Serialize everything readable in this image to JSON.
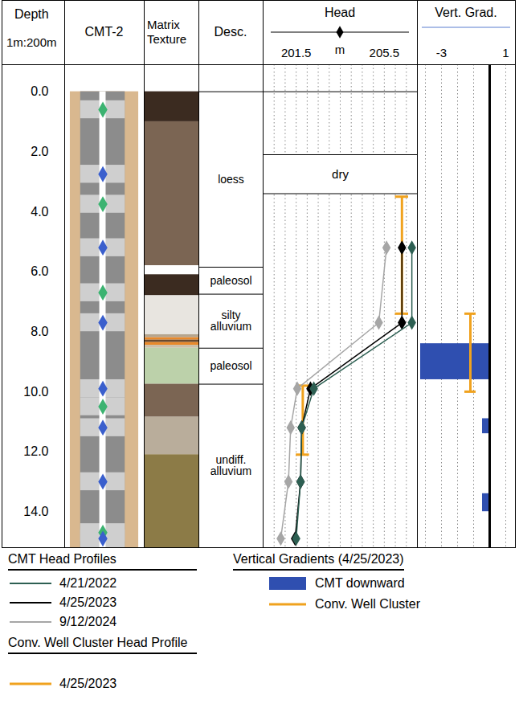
{
  "chart_data": {
    "type": "borehole_log",
    "ylabel": "Depth",
    "scale_label": "1m:200m",
    "legend": "bottom",
    "ylim": [
      -0.9,
      15.2
    ],
    "yticks": [
      {
        "value": 0,
        "label": "0.0"
      },
      {
        "value": 2,
        "label": "2.0"
      },
      {
        "value": 4,
        "label": "4.0"
      },
      {
        "value": 6,
        "label": "6.0"
      },
      {
        "value": 8,
        "label": "8.0"
      },
      {
        "value": 10,
        "label": "10.0"
      },
      {
        "value": 12,
        "label": "12.0"
      },
      {
        "value": 14,
        "label": "14.0"
      }
    ],
    "well": {
      "title": "CMT-2",
      "top": 0,
      "bottom": 15.2,
      "ports": [
        {
          "depth": 0.6,
          "color": "#3cb371"
        },
        {
          "depth": 2.75,
          "color": "#3a5fcd"
        },
        {
          "depth": 3.75,
          "color": "#3cb371"
        },
        {
          "depth": 5.2,
          "color": "#3a5fcd"
        },
        {
          "depth": 6.7,
          "color": "#3cb371"
        },
        {
          "depth": 7.7,
          "color": "#3a5fcd"
        },
        {
          "depth": 9.9,
          "color": "#3a5fcd"
        },
        {
          "depth": 10.5,
          "color": "#3cb371"
        },
        {
          "depth": 11.2,
          "color": "#3a5fcd"
        },
        {
          "depth": 13.0,
          "color": "#3a5fcd"
        },
        {
          "depth": 14.7,
          "color": "#3cb371"
        },
        {
          "depth": 14.9,
          "color": "#3a5fcd"
        }
      ]
    },
    "texture": {
      "title": "Matrix Texture",
      "layers": [
        {
          "top": 0,
          "bottom": 1.0,
          "color": "#3b2b20"
        },
        {
          "top": 1.0,
          "bottom": 5.8,
          "color": "#7b6553"
        },
        {
          "top": 5.8,
          "bottom": 6.1,
          "color": "#ffffff"
        },
        {
          "top": 6.1,
          "bottom": 6.8,
          "color": "#3b2b20"
        },
        {
          "top": 6.8,
          "bottom": 8.1,
          "color": "#e8e5e0"
        },
        {
          "top": 8.1,
          "bottom": 8.2,
          "color": "#b5a58e"
        },
        {
          "top": 8.2,
          "bottom": 8.28,
          "color": "#e8892b"
        },
        {
          "top": 8.28,
          "bottom": 8.36,
          "color": "#6b4a2e"
        },
        {
          "top": 8.36,
          "bottom": 8.45,
          "color": "#e8892b"
        },
        {
          "top": 8.45,
          "bottom": 8.55,
          "color": "#cdbfa8"
        },
        {
          "top": 8.55,
          "bottom": 9.75,
          "color": "#bcd1aa"
        },
        {
          "top": 9.75,
          "bottom": 10.85,
          "color": "#7b6553"
        },
        {
          "top": 10.85,
          "bottom": 12.1,
          "color": "#b9ad9b"
        },
        {
          "top": 12.1,
          "bottom": 15.2,
          "color": "#8c7b47"
        }
      ]
    },
    "description": {
      "title": "Desc.",
      "units": [
        {
          "top": 0,
          "bottom": 5.85,
          "label": "loess"
        },
        {
          "top": 5.85,
          "bottom": 6.75,
          "label": "paleosol"
        },
        {
          "top": 6.75,
          "bottom": 8.55,
          "label": "silty alluvium"
        },
        {
          "top": 8.55,
          "bottom": 9.75,
          "label": "paleosol"
        },
        {
          "top": 9.75,
          "bottom": 15.2,
          "label": "undiff. alluvium"
        }
      ]
    },
    "head": {
      "title": "Head",
      "xlabel": "m",
      "xlim": [
        200,
        207
      ],
      "xticks": [
        201.5,
        205.5
      ],
      "grid_lines": [
        200.5,
        201,
        201.5,
        202,
        202.5,
        203,
        203.5,
        204,
        204.5,
        205,
        205.5,
        206,
        206.5
      ],
      "dry": {
        "top": 2.1,
        "bottom": 3.4,
        "label": "dry"
      },
      "legend_title": "CMT Head Profiles",
      "series": [
        {
          "name": "4/21/2022",
          "color": "#2d5f52",
          "marker": "diamond",
          "depths": [
            5.2,
            7.7,
            9.9,
            11.2,
            13.0,
            14.9
          ],
          "values": [
            206.75,
            206.75,
            202.3,
            201.75,
            201.7,
            201.5
          ]
        },
        {
          "name": "4/25/2023",
          "color": "#000000",
          "marker": "diamond",
          "depths": [
            5.2,
            7.7,
            9.9,
            11.2,
            13.0,
            14.9
          ],
          "values": [
            206.3,
            206.3,
            202.15,
            201.75,
            201.7,
            201.45
          ]
        },
        {
          "name": "9/12/2024",
          "color": "#a6a6a6",
          "marker": "diamond",
          "depths": [
            5.2,
            7.7,
            9.9,
            11.2,
            13.0,
            14.9
          ],
          "values": [
            205.6,
            205.25,
            201.55,
            201.25,
            201.15,
            200.8
          ]
        }
      ],
      "well_cluster": {
        "legend_title": "Conv. Well Cluster Head Profile",
        "name": "4/25/2023",
        "color": "#f0a21e",
        "screens": [
          {
            "top": 3.5,
            "bottom": 7.4,
            "value": 206.3
          },
          {
            "top": 9.8,
            "bottom": 12.1,
            "value": 201.8
          }
        ]
      }
    },
    "gradient": {
      "title": "Vert. Grad.",
      "caption": "Vertical Gradients (4/25/2023)",
      "xlim": [
        -4.5,
        1.6
      ],
      "xticks": [
        {
          "value": -3,
          "label": "-3"
        },
        1
      ],
      "grid_lines": [
        -4,
        -3,
        -2,
        -1,
        1
      ],
      "reference_line": 0,
      "cmt": {
        "name": "CMT downward",
        "color": "#2f4fb0",
        "bars": [
          {
            "top": 8.4,
            "bottom": 9.6,
            "value": -4.3
          },
          {
            "top": 10.9,
            "bottom": 11.4,
            "value": -0.45
          },
          {
            "top": 13.4,
            "bottom": 14.0,
            "value": -0.45
          }
        ]
      },
      "cluster": {
        "name": "Conv. Well Cluster",
        "color": "#f0a21e",
        "top": 7.4,
        "bottom": 10.0,
        "value": -1.2
      }
    }
  }
}
